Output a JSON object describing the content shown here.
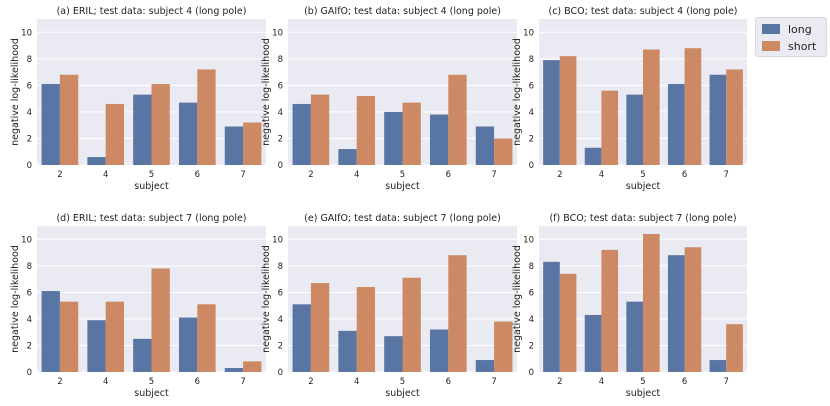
{
  "legend": {
    "entries": [
      {
        "label": "long",
        "color": "#5975a4"
      },
      {
        "label": "short",
        "color": "#cc8963"
      }
    ]
  },
  "chart_data": [
    {
      "type": "bar",
      "title": "(a) ERIL; test data: subject 4 (long pole)",
      "xlabel": "subject",
      "ylabel": "negative log-likelihood",
      "categories": [
        "2",
        "4",
        "5",
        "6",
        "7"
      ],
      "ylim": [
        0,
        11
      ],
      "yticks": [
        0,
        2,
        4,
        6,
        8,
        10
      ],
      "series": [
        {
          "name": "long",
          "values": [
            6.1,
            0.6,
            5.3,
            4.7,
            2.9
          ]
        },
        {
          "name": "short",
          "values": [
            6.8,
            4.6,
            6.1,
            7.2,
            3.2
          ]
        }
      ]
    },
    {
      "type": "bar",
      "title": "(b) GAIfO; test data: subject 4 (long pole)",
      "xlabel": "subject",
      "ylabel": "negative log-likelihood",
      "categories": [
        "2",
        "4",
        "5",
        "6",
        "7"
      ],
      "ylim": [
        0,
        11
      ],
      "yticks": [
        0,
        2,
        4,
        6,
        8,
        10
      ],
      "series": [
        {
          "name": "long",
          "values": [
            4.6,
            1.2,
            4.0,
            3.8,
            2.9
          ]
        },
        {
          "name": "short",
          "values": [
            5.3,
            5.2,
            4.7,
            6.8,
            2.0
          ]
        }
      ]
    },
    {
      "type": "bar",
      "title": "(c) BCO; test data: subject 4 (long pole)",
      "xlabel": "subject",
      "ylabel": "negative log-likelihood",
      "categories": [
        "2",
        "4",
        "5",
        "6",
        "7"
      ],
      "ylim": [
        0,
        11
      ],
      "yticks": [
        0,
        2,
        4,
        6,
        8,
        10
      ],
      "series": [
        {
          "name": "long",
          "values": [
            7.9,
            1.3,
            5.3,
            6.1,
            6.8
          ]
        },
        {
          "name": "short",
          "values": [
            8.2,
            5.6,
            8.7,
            8.8,
            7.2
          ]
        }
      ]
    },
    {
      "type": "bar",
      "title": "(d) ERIL; test data: subject 7 (long pole)",
      "xlabel": "subject",
      "ylabel": "negative log-likelihood",
      "categories": [
        "2",
        "4",
        "5",
        "6",
        "7"
      ],
      "ylim": [
        0,
        11
      ],
      "yticks": [
        0,
        2,
        4,
        6,
        8,
        10
      ],
      "series": [
        {
          "name": "long",
          "values": [
            6.1,
            3.9,
            2.5,
            4.1,
            0.3
          ]
        },
        {
          "name": "short",
          "values": [
            5.3,
            5.3,
            7.8,
            5.1,
            0.8
          ]
        }
      ]
    },
    {
      "type": "bar",
      "title": "(e) GAIfO; test data: subject 7 (long pole)",
      "xlabel": "subject",
      "ylabel": "negative log-likelihood",
      "categories": [
        "2",
        "4",
        "5",
        "6",
        "7"
      ],
      "ylim": [
        0,
        11
      ],
      "yticks": [
        0,
        2,
        4,
        6,
        8,
        10
      ],
      "series": [
        {
          "name": "long",
          "values": [
            5.1,
            3.1,
            2.7,
            3.2,
            0.9
          ]
        },
        {
          "name": "short",
          "values": [
            6.7,
            6.4,
            7.1,
            8.8,
            3.8
          ]
        }
      ]
    },
    {
      "type": "bar",
      "title": "(f) BCO; test data: subject 7 (long pole)",
      "xlabel": "subject",
      "ylabel": "negative log-likelihood",
      "categories": [
        "2",
        "4",
        "5",
        "6",
        "7"
      ],
      "ylim": [
        0,
        11
      ],
      "yticks": [
        0,
        2,
        4,
        6,
        8,
        10
      ],
      "series": [
        {
          "name": "long",
          "values": [
            8.3,
            4.3,
            5.3,
            8.8,
            0.9
          ]
        },
        {
          "name": "short",
          "values": [
            7.4,
            9.2,
            10.4,
            9.4,
            3.6
          ]
        }
      ]
    }
  ]
}
